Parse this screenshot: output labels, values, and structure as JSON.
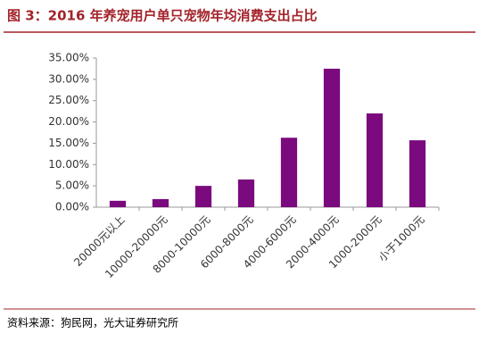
{
  "chart_data": {
    "type": "bar",
    "title": "图 3：2016 年养宠用户单只宠物年均消费支出占比",
    "source": "资料来源：狗民网，光大证券研究所",
    "categories": [
      "20000元以上",
      "10000-20000元",
      "8000-10000元",
      "6000-8000元",
      "4000-6000元",
      "2000-4000元",
      "1000-2000元",
      "小于1000元"
    ],
    "values": [
      1.5,
      1.9,
      5.0,
      6.5,
      16.3,
      32.5,
      22.0,
      15.7
    ],
    "color": "#7b0a7e",
    "ylim": [
      0,
      35
    ],
    "yticks": [
      {
        "value": 0,
        "label": "0.00%"
      },
      {
        "value": 5,
        "label": "5.00%"
      },
      {
        "value": 10,
        "label": "10.00%"
      },
      {
        "value": 15,
        "label": "15.00%"
      },
      {
        "value": 20,
        "label": "20.00%"
      },
      {
        "value": 25,
        "label": "25.00%"
      },
      {
        "value": 30,
        "label": "30.00%"
      },
      {
        "value": 35,
        "label": "35.00%"
      }
    ],
    "grid": false
  }
}
